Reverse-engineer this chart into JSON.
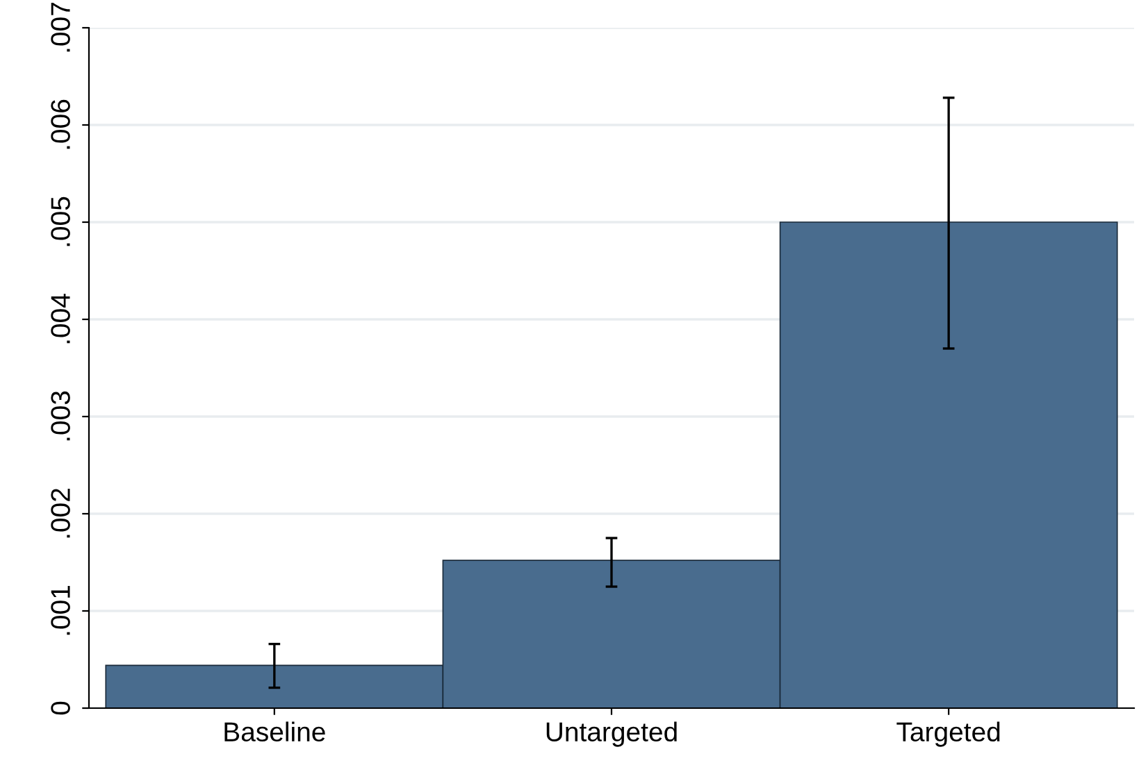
{
  "chart_data": {
    "type": "bar",
    "categories": [
      "Baseline",
      "Untargeted",
      "Targeted"
    ],
    "values": [
      0.00044,
      0.00152,
      0.005
    ],
    "errors": [
      [
        0.00021,
        0.00066
      ],
      [
        0.00125,
        0.00175
      ],
      [
        0.0037,
        0.00628
      ]
    ],
    "color": "#496c8e",
    "ylim": [
      0,
      0.007
    ],
    "yticks": [
      {
        "value": 0,
        "label": "0"
      },
      {
        "value": 0.001,
        "label": ".001"
      },
      {
        "value": 0.002,
        "label": ".002"
      },
      {
        "value": 0.003,
        "label": ".003"
      },
      {
        "value": 0.004,
        "label": ".004"
      },
      {
        "value": 0.005,
        "label": ".005"
      },
      {
        "value": 0.006,
        "label": ".006"
      },
      {
        "value": 0.007,
        "label": ".007"
      }
    ],
    "grid": "y",
    "legend": false
  }
}
